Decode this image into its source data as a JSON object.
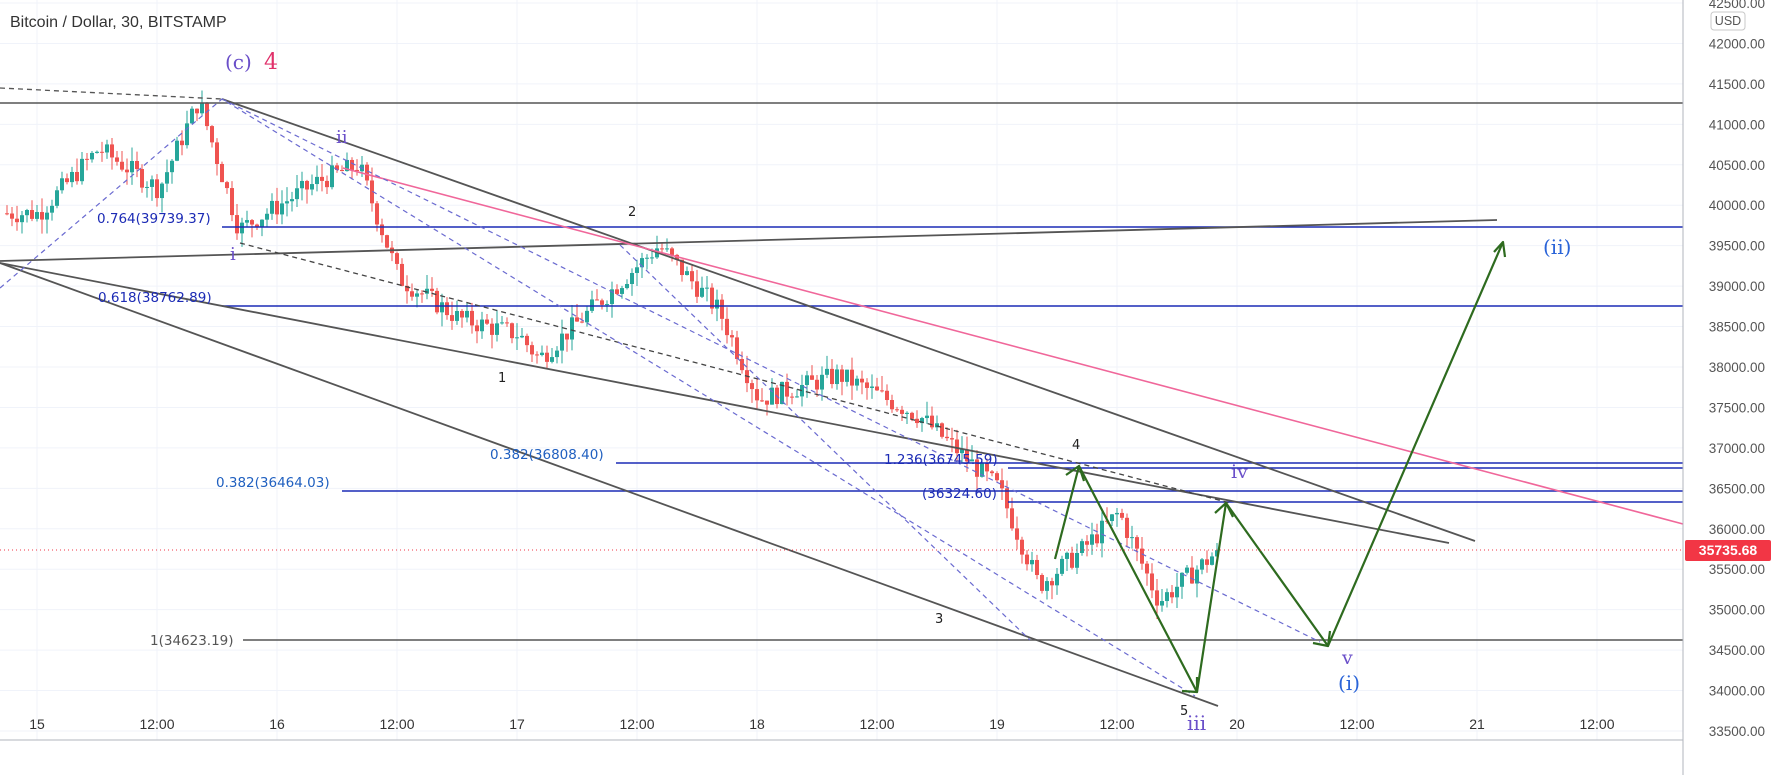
{
  "header": {
    "title": "Bitcoin / Dollar, 30, BITSTAMP"
  },
  "price_axis": {
    "currency": "USD",
    "labels": [
      "42500.00",
      "42000.00",
      "41500.00",
      "41000.00",
      "40500.00",
      "40000.00",
      "39500.00",
      "39000.00",
      "38500.00",
      "38000.00",
      "37500.00",
      "37000.00",
      "36500.00",
      "36000.00",
      "35500.00",
      "35000.00",
      "34500.00",
      "34000.00",
      "33500.00"
    ],
    "current_price": "35735.68",
    "current_color": "#f23645"
  },
  "time_axis": {
    "labels": [
      "15",
      "12:00",
      "16",
      "12:00",
      "17",
      "12:00",
      "18",
      "12:00",
      "19",
      "12:00",
      "20",
      "12:00",
      "21",
      "12:00"
    ]
  },
  "fib_labels": {
    "f1": "0.764(39739.37)",
    "f2": "0.618(38762.89)",
    "f3": "0.382(36808.40)",
    "f4": "0.382(36464.03)",
    "f5": "1.236(36745.59)",
    "f6": "(36324.60)",
    "f7": "1(34623.19)"
  },
  "wave_labels": {
    "c": "(c)",
    "c4": "4",
    "ii_small": "ii",
    "i_small": "i",
    "n1": "1",
    "n2": "2",
    "n3": "3",
    "n4": "4",
    "n5": "5",
    "iii": "iii",
    "iv": "iv",
    "v": "v",
    "i_paren": "(i)",
    "ii_paren": "(ii)"
  },
  "colors": {
    "fib_blue": "#1c2bb5",
    "wave_purple": "#6a4fc9",
    "wave_pink": "#e0306a",
    "projection_green": "#2e6b1f",
    "trend_gray": "#555555",
    "pink_line": "#f0679a",
    "bull_candle": "#26a69a",
    "bear_candle": "#ef5350"
  },
  "chart_data": {
    "type": "candlestick",
    "symbol": "Bitcoin / Dollar",
    "interval": "30",
    "exchange": "BITSTAMP",
    "y_range": [
      33400,
      42550
    ],
    "x_ticks": [
      "15",
      "12:00",
      "16",
      "12:00",
      "17",
      "12:00",
      "18",
      "12:00",
      "19",
      "12:00",
      "20",
      "12:00",
      "21",
      "12:00"
    ],
    "current_price": 35735.68,
    "fib_levels": [
      {
        "label": "0.764",
        "value": 39739.37
      },
      {
        "label": "0.618",
        "value": 38762.89
      },
      {
        "label": "0.382",
        "value": 36808.4
      },
      {
        "label": "0.382",
        "value": 36464.03
      },
      {
        "label": "1.236",
        "value": 36745.59
      },
      {
        "label": "",
        "value": 36324.6
      },
      {
        "label": "1",
        "value": 34623.19
      }
    ],
    "horizontal_lines": [
      41270,
      39739.37,
      38762.89,
      36808.4,
      36745.59,
      36464.03,
      36324.6,
      34623.19
    ],
    "close_path_anchors": [
      [
        39900,
        "15 00:00"
      ],
      [
        40700,
        "15 06:00"
      ],
      [
        40200,
        "15 12:00"
      ],
      [
        41300,
        "15 16:00"
      ],
      [
        39700,
        "15 20:00"
      ],
      [
        40300,
        "16 04:00"
      ],
      [
        40500,
        "16 08:00"
      ],
      [
        39100,
        "16 12:00"
      ],
      [
        38600,
        "16 18:00"
      ],
      [
        38400,
        "17 00:00"
      ],
      [
        38100,
        "17 02:00"
      ],
      [
        38800,
        "17 08:00"
      ],
      [
        39500,
        "17 14:00"
      ],
      [
        38700,
        "17 20:00"
      ],
      [
        37600,
        "18 00:00"
      ],
      [
        37900,
        "18 08:00"
      ],
      [
        37400,
        "18 16:00"
      ],
      [
        36500,
        "19 00:00"
      ],
      [
        35300,
        "19 04:00"
      ],
      [
        35700,
        "19 08:00"
      ],
      [
        36200,
        "19 12:00"
      ],
      [
        35100,
        "19 16:00"
      ],
      [
        35735.68,
        "19 22:00"
      ]
    ]
  }
}
